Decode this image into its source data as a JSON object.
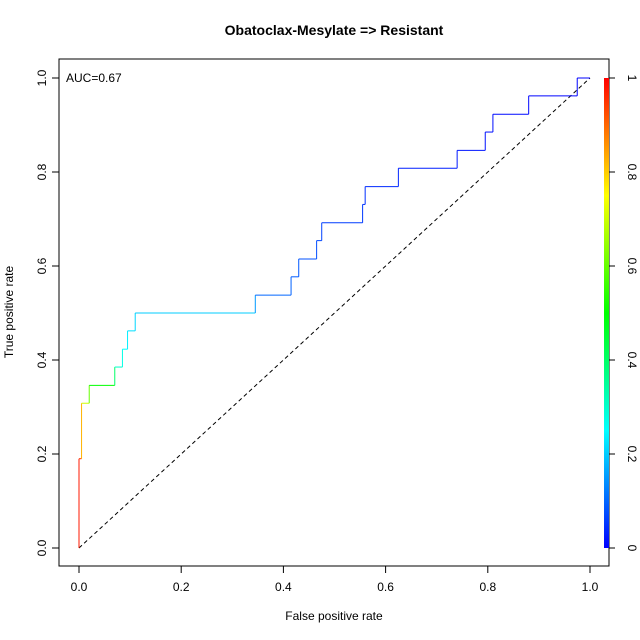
{
  "chart_data": {
    "type": "line",
    "title": "Obatoclax-Mesylate => Resistant",
    "xlabel": "False positive rate",
    "ylabel": "True positive rate",
    "xlim": [
      0,
      1
    ],
    "ylim": [
      0,
      1
    ],
    "x_ticks": [
      "0.0",
      "0.2",
      "0.4",
      "0.6",
      "0.8",
      "1.0"
    ],
    "y_ticks": [
      "0.0",
      "0.2",
      "0.4",
      "0.6",
      "0.8",
      "1.0"
    ],
    "annotation": "AUC=0.67",
    "grid": false,
    "series": [
      {
        "style": "step-colored-by-threshold",
        "points": [
          [
            0.0,
            0.0
          ],
          [
            0.0,
            0.19
          ],
          [
            0.005,
            0.19
          ],
          [
            0.005,
            0.308
          ],
          [
            0.02,
            0.308
          ],
          [
            0.02,
            0.346
          ],
          [
            0.07,
            0.346
          ],
          [
            0.07,
            0.385
          ],
          [
            0.085,
            0.385
          ],
          [
            0.085,
            0.423
          ],
          [
            0.095,
            0.423
          ],
          [
            0.095,
            0.462
          ],
          [
            0.11,
            0.462
          ],
          [
            0.11,
            0.5
          ],
          [
            0.345,
            0.5
          ],
          [
            0.345,
            0.538
          ],
          [
            0.415,
            0.538
          ],
          [
            0.415,
            0.577
          ],
          [
            0.43,
            0.577
          ],
          [
            0.43,
            0.615
          ],
          [
            0.465,
            0.615
          ],
          [
            0.465,
            0.654
          ],
          [
            0.475,
            0.654
          ],
          [
            0.475,
            0.692
          ],
          [
            0.555,
            0.692
          ],
          [
            0.555,
            0.731
          ],
          [
            0.56,
            0.731
          ],
          [
            0.56,
            0.769
          ],
          [
            0.625,
            0.769
          ],
          [
            0.625,
            0.808
          ],
          [
            0.74,
            0.808
          ],
          [
            0.74,
            0.846
          ],
          [
            0.795,
            0.846
          ],
          [
            0.795,
            0.885
          ],
          [
            0.81,
            0.885
          ],
          [
            0.81,
            0.923
          ],
          [
            0.88,
            0.923
          ],
          [
            0.88,
            0.962
          ],
          [
            0.975,
            0.962
          ],
          [
            0.975,
            1.0
          ],
          [
            1.0,
            1.0
          ]
        ],
        "thresholds": [
          1.0,
          0.95,
          0.95,
          0.7,
          0.7,
          0.5,
          0.5,
          0.3,
          0.3,
          0.25,
          0.25,
          0.22,
          0.22,
          0.2,
          0.2,
          0.1,
          0.1,
          0.09,
          0.09,
          0.08,
          0.08,
          0.07,
          0.07,
          0.06,
          0.06,
          0.05,
          0.05,
          0.04,
          0.04,
          0.03,
          0.03,
          0.02,
          0.02,
          0.015,
          0.015,
          0.01,
          0.01,
          0.005,
          0.005,
          0.0,
          0.0
        ]
      },
      {
        "style": "dashed-diagonal",
        "points": [
          [
            0,
            0
          ],
          [
            1,
            1
          ]
        ]
      }
    ],
    "colorbar": {
      "range": [
        0,
        1
      ],
      "ticks": [
        "0",
        "0.2",
        "0.4",
        "0.6",
        "0.8",
        "1"
      ],
      "colors": [
        "#0000ff",
        "#00ffff",
        "#00ff00",
        "#ffff00",
        "#ff0000"
      ]
    }
  }
}
